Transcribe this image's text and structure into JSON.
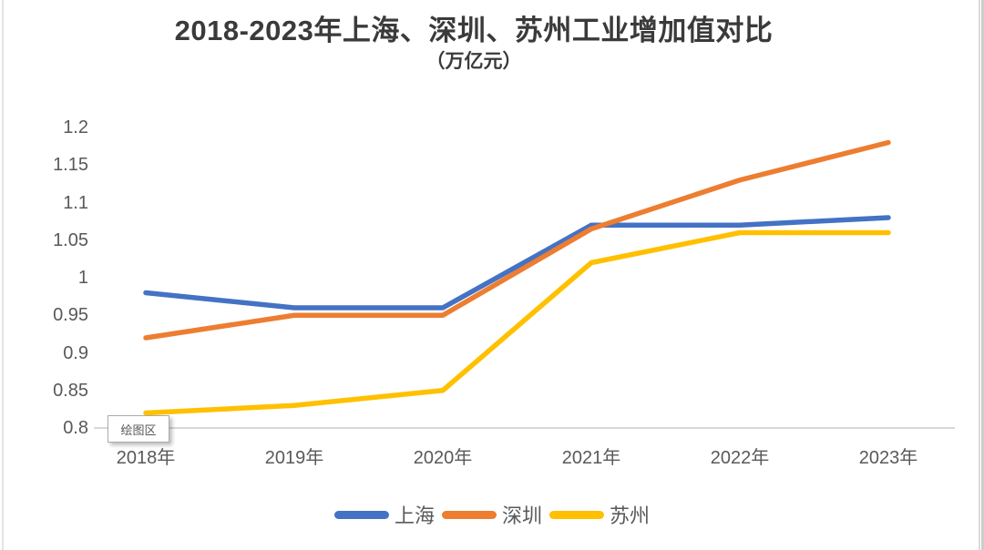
{
  "chart_data": {
    "type": "line",
    "title": "2018-2023年上海、深圳、苏州工业增加值对比",
    "subtitle": "（万亿元）",
    "categories": [
      "2018年",
      "2019年",
      "2020年",
      "2021年",
      "2022年",
      "2023年"
    ],
    "series": [
      {
        "name": "上海",
        "color": "#4472C4",
        "values": [
          0.98,
          0.96,
          0.96,
          1.07,
          1.07,
          1.08
        ]
      },
      {
        "name": "深圳",
        "color": "#ED7D31",
        "values": [
          0.92,
          0.95,
          0.95,
          1.065,
          1.13,
          1.18
        ]
      },
      {
        "name": "苏州",
        "color": "#FFC000",
        "values": [
          0.82,
          0.83,
          0.85,
          1.02,
          1.06,
          1.06
        ]
      }
    ],
    "y_ticks": [
      {
        "label": "1.2",
        "value": 1.2
      },
      {
        "label": "1.15",
        "value": 1.15
      },
      {
        "label": "1.1",
        "value": 1.1
      },
      {
        "label": "1.05",
        "value": 1.05
      },
      {
        "label": "1",
        "value": 1.0
      },
      {
        "label": "0.95",
        "value": 0.95
      },
      {
        "label": "0.9",
        "value": 0.9
      },
      {
        "label": "0.85",
        "value": 0.85
      },
      {
        "label": "0.8",
        "value": 0.8
      }
    ],
    "ylim": [
      0.8,
      1.2
    ],
    "grid": false,
    "legend_position": "bottom"
  },
  "tooltip": {
    "label": "绘图区"
  },
  "colors": {
    "series_shanghai": "#4472C4",
    "series_shenzhen": "#ED7D31",
    "series_suzhou": "#FFC000",
    "axis_line": "#d8d8d8",
    "tick_text": "#595959",
    "title_text": "#3a3a3a"
  }
}
